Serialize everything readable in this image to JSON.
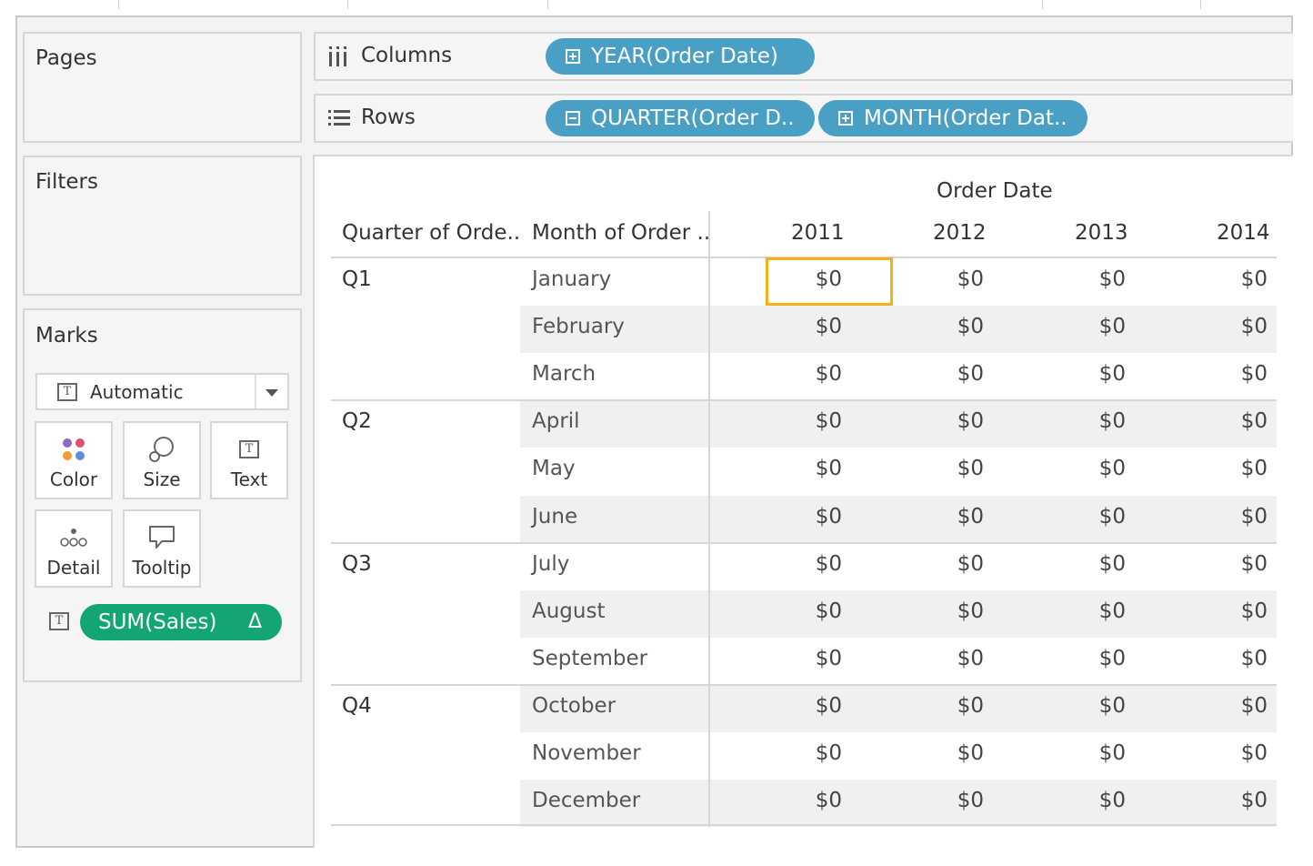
{
  "pages_title": "Pages",
  "filters_title": "Filters",
  "marks": {
    "title": "Marks",
    "type_value": "Automatic",
    "buttons": {
      "color": "Color",
      "size": "Size",
      "text": "Text",
      "detail": "Detail",
      "tooltip": "Tooltip"
    },
    "text_icon_glyph": "T",
    "pill": {
      "label": "SUM(Sales)",
      "delta": "Δ"
    }
  },
  "shelves": {
    "columns": {
      "label": "Columns",
      "pills": [
        "YEAR(Order Date)"
      ]
    },
    "rows": {
      "label": "Rows",
      "pills": [
        "QUARTER(Order D..",
        "MONTH(Order Dat.."
      ]
    }
  },
  "table": {
    "column_header_title": "Order Date",
    "row_header_labels": [
      "Quarter of Orde..",
      "Month of Order .."
    ],
    "years": [
      "2011",
      "2012",
      "2013",
      "2014"
    ],
    "quarters": [
      "Q1",
      "Q2",
      "Q3",
      "Q4"
    ],
    "months": [
      "January",
      "February",
      "March",
      "April",
      "May",
      "June",
      "July",
      "August",
      "September",
      "October",
      "November",
      "December"
    ],
    "cell_value": "$0"
  },
  "colors": {
    "dimension_pill": "#4a9fc4",
    "measure_pill": "#13a574",
    "selection_highlight": "#f2b21c"
  }
}
